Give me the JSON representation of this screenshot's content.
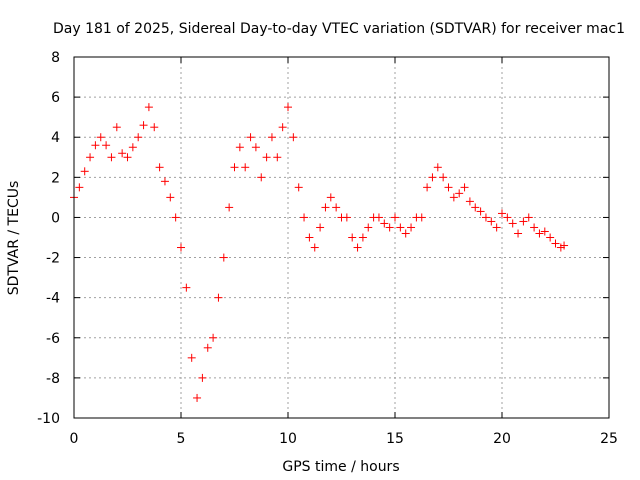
{
  "chart_data": {
    "type": "scatter",
    "title": "Day 181 of 2025, Sidereal Day-to-day VTEC variation (SDTVAR) for receiver mac1",
    "xlabel": "GPS time / hours",
    "ylabel": "SDTVAR / TECUs",
    "xlim": [
      0,
      25
    ],
    "ylim": [
      -10,
      8
    ],
    "xticks": [
      0,
      5,
      10,
      15,
      20,
      25
    ],
    "yticks": [
      -10,
      -8,
      -6,
      -4,
      -2,
      0,
      2,
      4,
      6,
      8
    ],
    "grid": true,
    "marker": "plus",
    "color": "#ff0000",
    "series": [
      {
        "name": "SDTVAR",
        "x": [
          0.0,
          0.25,
          0.5,
          0.75,
          1.0,
          1.25,
          1.5,
          1.75,
          2.0,
          2.25,
          2.5,
          2.75,
          3.0,
          3.25,
          3.5,
          3.75,
          4.0,
          4.25,
          4.5,
          4.75,
          5.0,
          5.25,
          5.5,
          5.75,
          6.0,
          6.25,
          6.5,
          6.75,
          7.0,
          7.25,
          7.5,
          7.75,
          8.0,
          8.25,
          8.5,
          8.75,
          9.0,
          9.25,
          9.5,
          9.75,
          10.0,
          10.25,
          10.5,
          10.75,
          11.0,
          11.25,
          11.5,
          11.75,
          12.0,
          12.25,
          12.5,
          12.75,
          13.0,
          13.25,
          13.5,
          13.75,
          14.0,
          14.25,
          14.5,
          14.75,
          15.0,
          15.25,
          15.5,
          15.75,
          16.0,
          16.25,
          16.5,
          16.75,
          17.0,
          17.25,
          17.5,
          17.75,
          18.0,
          18.25,
          18.5,
          18.75,
          19.0,
          19.25,
          19.5,
          19.75,
          20.0,
          20.25,
          20.5,
          20.75,
          21.0,
          21.25,
          21.5,
          21.75,
          22.0,
          22.25,
          22.5,
          22.75,
          22.9
        ],
        "y": [
          1.0,
          1.5,
          2.3,
          3.0,
          3.6,
          4.0,
          3.6,
          3.0,
          4.5,
          3.2,
          3.0,
          3.5,
          4.0,
          4.6,
          5.5,
          4.5,
          2.5,
          1.8,
          1.0,
          0.0,
          -1.5,
          -3.5,
          -7.0,
          -9.0,
          -8.0,
          -6.5,
          -6.0,
          -4.0,
          -2.0,
          0.5,
          2.5,
          3.5,
          2.5,
          4.0,
          3.5,
          2.0,
          3.0,
          4.0,
          3.0,
          4.5,
          5.5,
          4.0,
          1.5,
          0.0,
          -1.0,
          -1.5,
          -0.5,
          0.5,
          1.0,
          0.5,
          0.0,
          0.0,
          -1.0,
          -1.5,
          -1.0,
          -0.5,
          0.0,
          0.0,
          -0.3,
          -0.5,
          0.0,
          -0.5,
          -0.8,
          -0.5,
          0.0,
          0.0,
          1.5,
          2.0,
          2.5,
          2.0,
          1.5,
          1.0,
          1.2,
          1.5,
          0.8,
          0.5,
          0.3,
          0.0,
          -0.2,
          -0.5,
          0.2,
          0.0,
          -0.3,
          -0.8,
          -0.2,
          0.0,
          -0.5,
          -0.8,
          -0.7,
          -1.0,
          -1.3,
          -1.5,
          -1.4
        ]
      }
    ]
  }
}
